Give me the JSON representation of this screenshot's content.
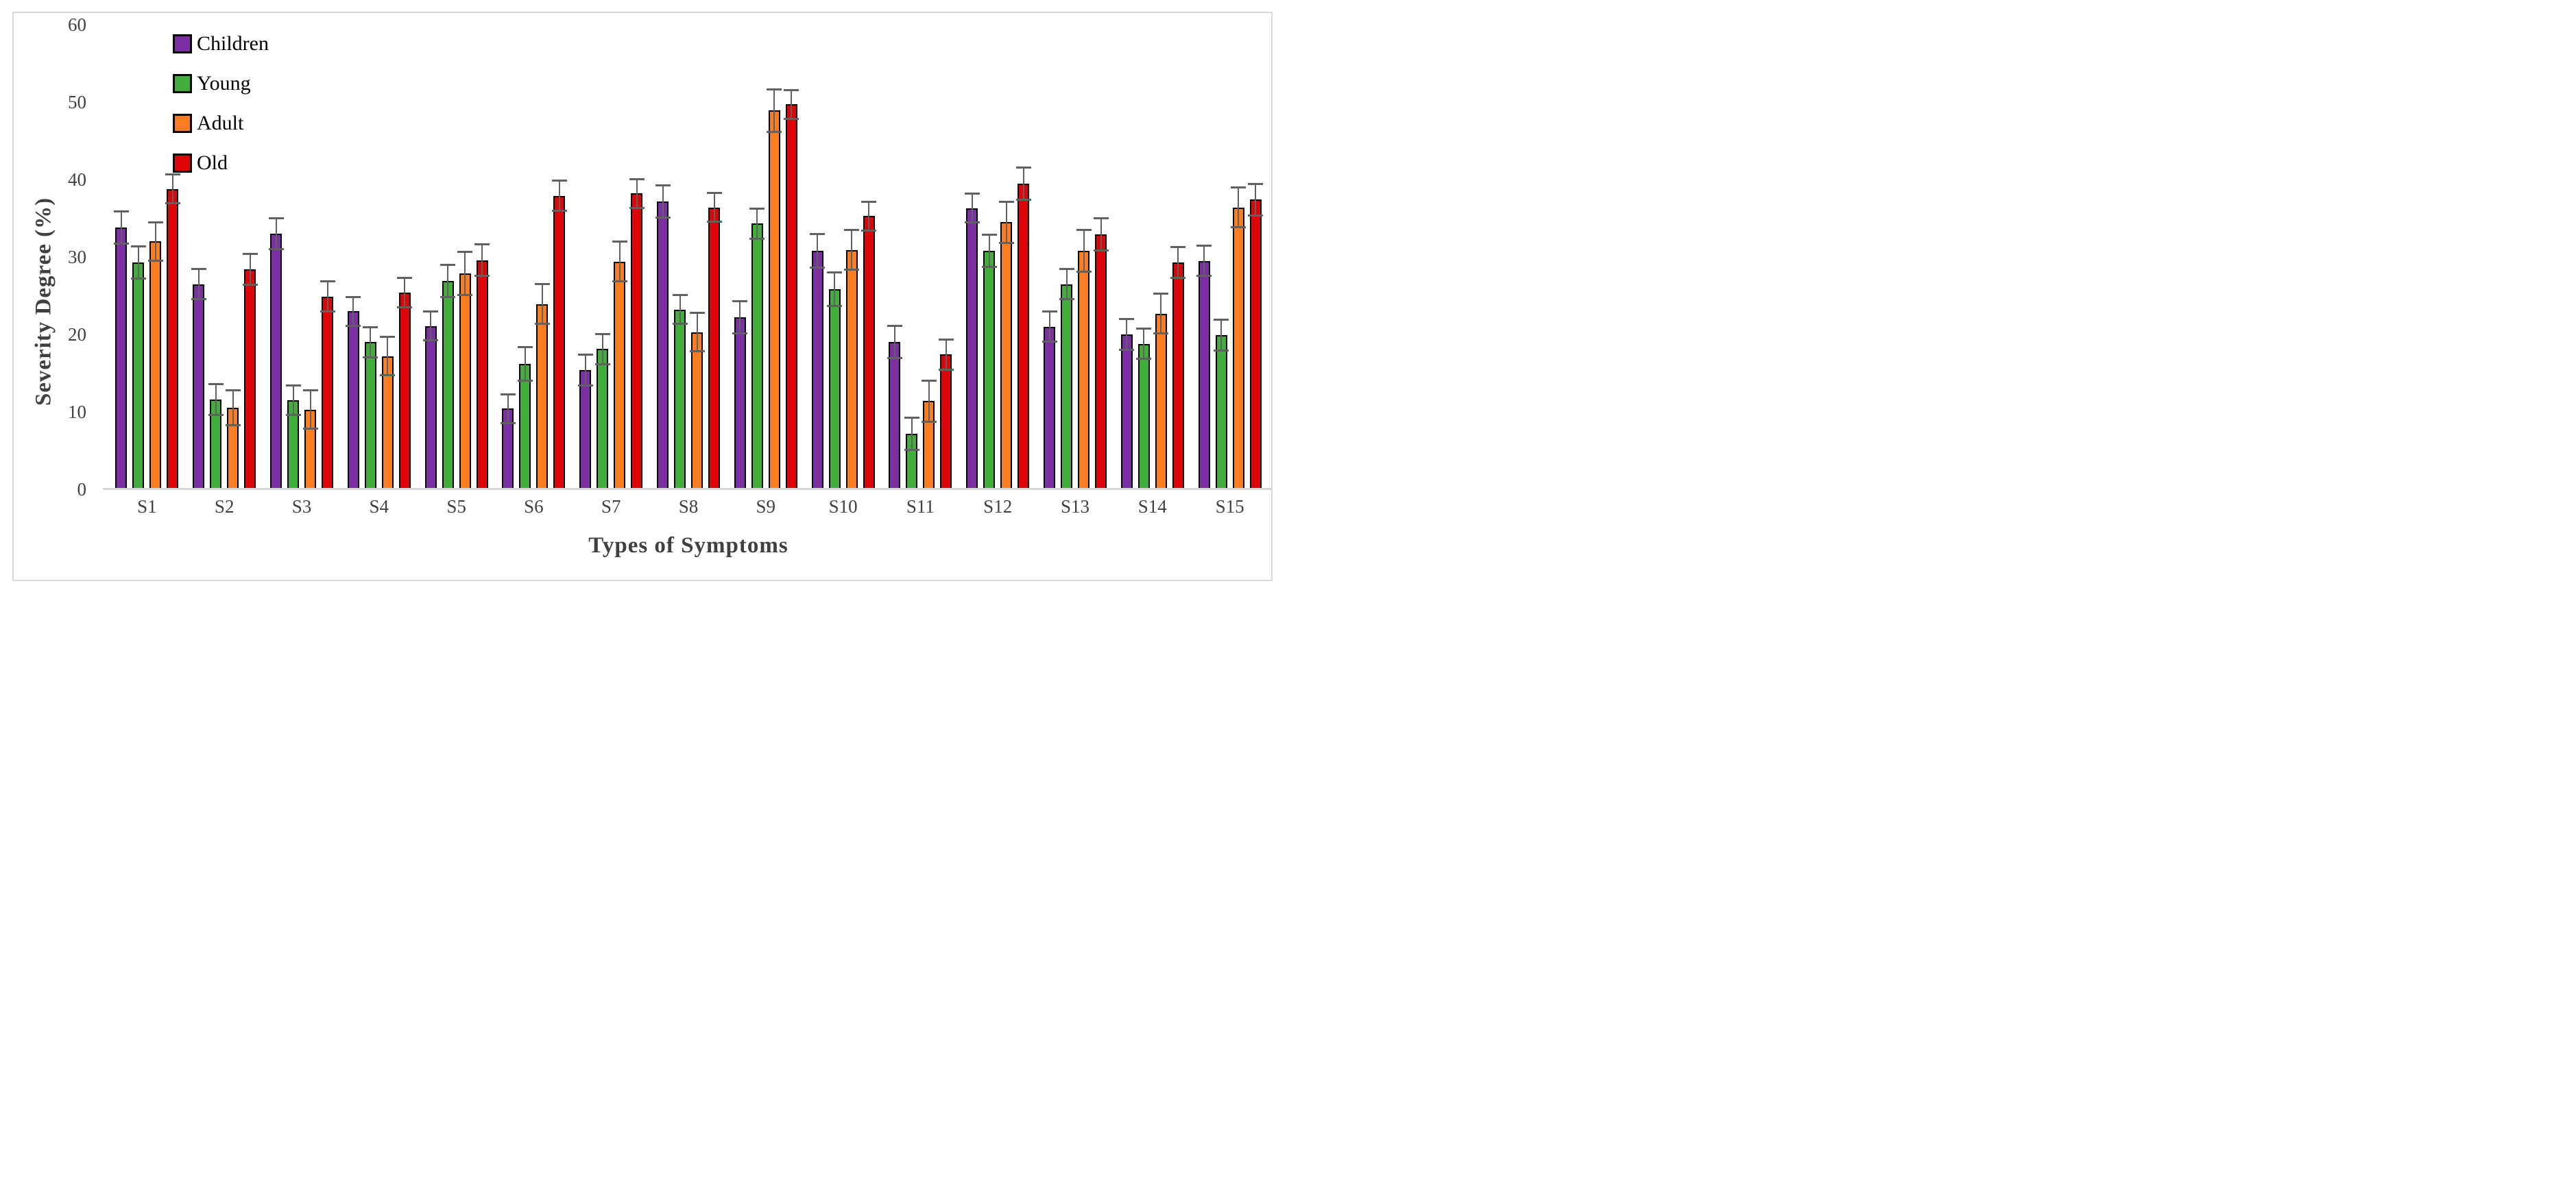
{
  "chart_data": {
    "type": "bar",
    "title": "",
    "xlabel": "Types of Symptoms",
    "ylabel": "Severity Degree (%)",
    "ylim": [
      0,
      60
    ],
    "yticks": [
      0,
      10,
      20,
      30,
      40,
      50,
      60
    ],
    "grid": false,
    "error_bars": true,
    "legend_position": "upper-left-inside",
    "categories": [
      "S1",
      "S2",
      "S3",
      "S4",
      "S5",
      "S6",
      "S7",
      "S8",
      "S9",
      "S10",
      "S11",
      "S12",
      "S13",
      "S14",
      "S15"
    ],
    "series": [
      {
        "name": "Children",
        "color": "#7B2FA3",
        "values": [
          33.8,
          26.5,
          33.0,
          23.0,
          21.1,
          10.4,
          15.4,
          37.2,
          22.2,
          30.8,
          19.0,
          36.3,
          21.0,
          20.0,
          29.5
        ],
        "errors": [
          2.2,
          2.1,
          2.1,
          2.0,
          2.0,
          2.0,
          2.1,
          2.2,
          2.2,
          2.3,
          2.2,
          2.0,
          2.1,
          2.1,
          2.1
        ]
      },
      {
        "name": "Young",
        "color": "#43AD3B",
        "values": [
          29.3,
          11.6,
          11.5,
          19.0,
          26.9,
          16.2,
          18.1,
          23.2,
          34.3,
          25.8,
          7.2,
          30.8,
          26.5,
          18.8,
          19.9
        ],
        "errors": [
          2.2,
          2.1,
          2.0,
          2.1,
          2.2,
          2.3,
          2.1,
          2.0,
          2.1,
          2.3,
          2.2,
          2.2,
          2.1,
          2.1,
          2.1
        ]
      },
      {
        "name": "Adult",
        "color": "#FB7D23",
        "values": [
          32.0,
          10.5,
          10.3,
          17.2,
          27.9,
          23.9,
          29.4,
          20.3,
          48.9,
          30.9,
          11.4,
          34.5,
          30.8,
          22.7,
          36.4
        ],
        "errors": [
          2.6,
          2.4,
          2.6,
          2.6,
          2.9,
          2.7,
          2.7,
          2.6,
          2.9,
          2.7,
          2.8,
          2.8,
          2.8,
          2.7,
          2.7
        ]
      },
      {
        "name": "Old",
        "color": "#DE0508",
        "values": [
          38.8,
          28.4,
          24.9,
          25.4,
          29.6,
          37.9,
          38.2,
          36.4,
          49.7,
          35.3,
          17.4,
          39.5,
          32.9,
          29.3,
          37.4
        ],
        "errors": [
          2.0,
          2.1,
          2.1,
          2.0,
          2.2,
          2.1,
          2.0,
          2.0,
          2.0,
          2.0,
          2.1,
          2.2,
          2.2,
          2.1,
          2.2
        ]
      }
    ]
  },
  "style": {
    "bar_border_color": "#000000",
    "error_bar_color": "#616161",
    "axis_line_color": "#D6D6D6",
    "figure_border_color": "#D9D9D9",
    "tick_text_color": "#404040"
  }
}
